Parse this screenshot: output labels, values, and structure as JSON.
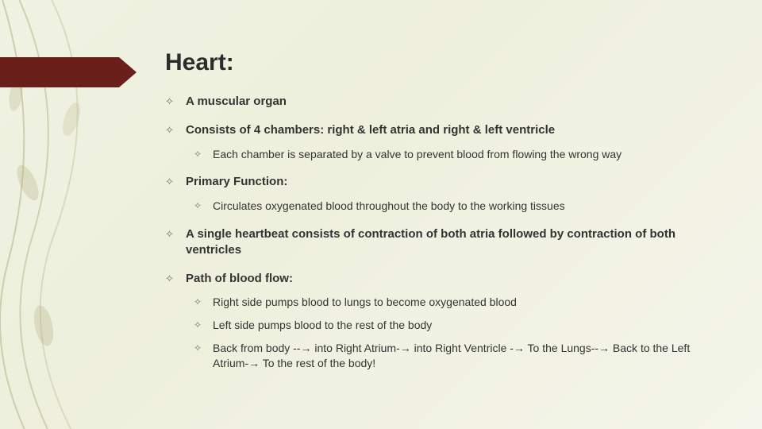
{
  "title": "Heart:",
  "colors": {
    "banner": "#6b1f1a",
    "bg_gradient_start": "#f0f2e2",
    "bg_gradient_end": "#f4f5ea",
    "bullet": "#6f6f55",
    "text": "#333333",
    "title": "#2c2c2c"
  },
  "bullets": [
    {
      "text": "A muscular organ",
      "bold": true,
      "sub": []
    },
    {
      "text": "Consists of 4 chambers: right & left atria and right & left ventricle",
      "bold": true,
      "sub": [
        {
          "text": "Each chamber is separated by a valve to prevent blood from flowing the wrong way"
        }
      ]
    },
    {
      "text": "Primary Function:",
      "bold": true,
      "sub": [
        {
          "text": "Circulates oxygenated blood throughout the body to the working tissues"
        }
      ]
    },
    {
      "text": "A single heartbeat consists of contraction of both atria followed by contraction of both ventricles",
      "bold": true,
      "sub": []
    },
    {
      "text": "Path of blood flow:",
      "bold": true,
      "sub": [
        {
          "text": "Right side pumps blood to lungs to become oxygenated blood"
        },
        {
          "text": "Left side pumps blood to the rest of the body"
        },
        {
          "text": "Back from body --→ into Right Atrium-→ into Right Ventricle -→ To the Lungs--→ Back to the Left Atrium-→ To the rest of the body!"
        }
      ]
    }
  ]
}
